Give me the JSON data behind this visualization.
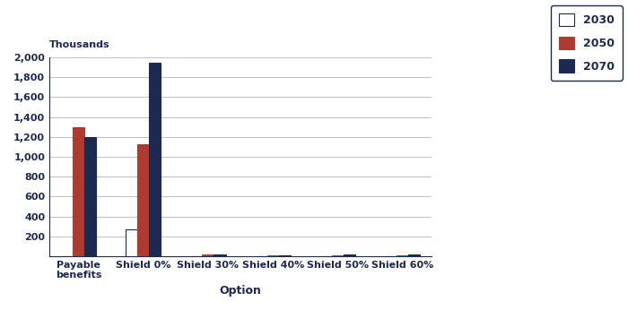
{
  "categories": [
    "Payable\nbenefits",
    "Shield 0%",
    "Shield 30%",
    "Shield 40%",
    "Shield 50%",
    "Shield 60%"
  ],
  "series": {
    "2030": [
      0,
      270,
      0,
      0,
      0,
      0
    ],
    "2050": [
      1300,
      1130,
      15,
      10,
      12,
      10
    ],
    "2070": [
      1200,
      1950,
      20,
      12,
      18,
      14
    ]
  },
  "colors": {
    "2030": "#FFFFFF",
    "2050": "#B03A2E",
    "2070": "#1C2951"
  },
  "edge_colors": {
    "2030": "#1C2951",
    "2050": "#B03A2E",
    "2070": "#1C2951"
  },
  "ylim": [
    0,
    2000
  ],
  "yticks": [
    0,
    200,
    400,
    600,
    800,
    1000,
    1200,
    1400,
    1600,
    1800,
    2000
  ],
  "ytick_labels": [
    "",
    "200",
    "400",
    "600",
    "800",
    "1,000",
    "1,200",
    "1,400",
    "1,600",
    "1,800",
    "2,000"
  ],
  "ylabel_top": "Thousands",
  "xlabel": "Option",
  "legend_labels": [
    "2030",
    "2050",
    "2070"
  ],
  "background_color": "#FFFFFF",
  "grid_color": "#AAAAAA",
  "axis_color": "#1C2951",
  "bar_width": 0.18,
  "figsize": [
    7.0,
    3.46
  ],
  "dpi": 100
}
